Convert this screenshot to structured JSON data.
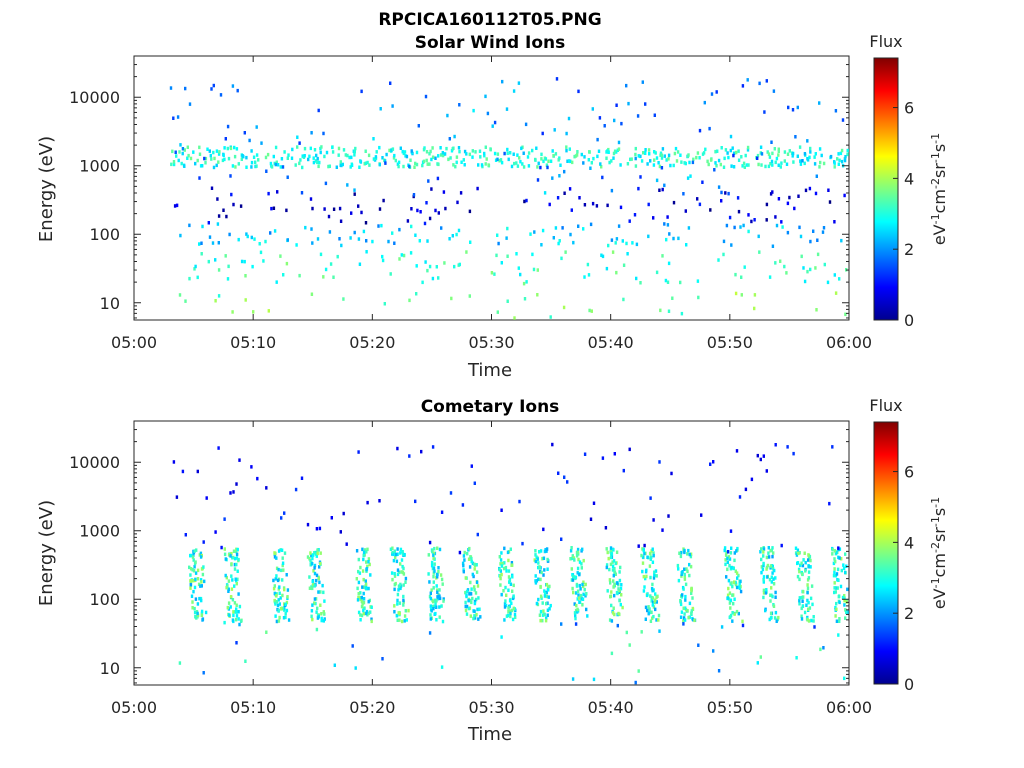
{
  "figure": {
    "title": "RPCICA160112T05.PNG"
  },
  "chart_data": [
    {
      "type": "heatmap",
      "title": "Solar Wind Ions",
      "xlabel": "Time",
      "ylabel": "Energy (eV)",
      "x_ticks": [
        "05:00",
        "05:10",
        "05:20",
        "05:30",
        "05:40",
        "05:50",
        "06:00"
      ],
      "x_range": [
        "05:00",
        "06:00"
      ],
      "y_scale": "log",
      "y_range": [
        5.6,
        40000
      ],
      "y_ticks": [
        {
          "value": 10,
          "label": "10"
        },
        {
          "value": 100,
          "label": "100"
        },
        {
          "value": 1000,
          "label": "1000"
        },
        {
          "value": 10000,
          "label": "10000"
        }
      ],
      "colorbar": {
        "title": "Flux",
        "label": "eV-1cm-2sr-1s-1",
        "range": [
          0,
          7.4
        ],
        "ticks": [
          0,
          2,
          4,
          6
        ],
        "colormap": "jet"
      },
      "data_start": "05:03",
      "bands": [
        {
          "energy_range": [
            1000,
            2000
          ],
          "flux": 3.0
        },
        {
          "energy_range": [
            150,
            500
          ],
          "flux": 0.6
        },
        {
          "energy_range": [
            70,
            150
          ],
          "flux": 2.4
        },
        {
          "energy_range": [
            20,
            60
          ],
          "flux": 3.2
        },
        {
          "energy_range": [
            6,
            15
          ],
          "flux": 3.6
        }
      ]
    },
    {
      "type": "heatmap",
      "title": "Cometary Ions",
      "xlabel": "Time",
      "ylabel": "Energy (eV)",
      "x_ticks": [
        "05:00",
        "05:10",
        "05:20",
        "05:30",
        "05:40",
        "05:50",
        "06:00"
      ],
      "x_range": [
        "05:00",
        "06:00"
      ],
      "y_scale": "log",
      "y_range": [
        5.6,
        40000
      ],
      "y_ticks": [
        {
          "value": 10,
          "label": "10"
        },
        {
          "value": 100,
          "label": "100"
        },
        {
          "value": 1000,
          "label": "1000"
        },
        {
          "value": 10000,
          "label": "10000"
        }
      ],
      "colorbar": {
        "title": "Flux",
        "label": "eV-1cm-2sr-1s-1",
        "range": [
          0,
          7.4
        ],
        "ticks": [
          0,
          2,
          4,
          6
        ],
        "colormap": "jet"
      },
      "data_start": "05:03",
      "bursts": {
        "times": [
          "05:05",
          "05:08",
          "05:12",
          "05:15",
          "05:19",
          "05:22",
          "05:25",
          "05:28",
          "05:31",
          "05:34",
          "05:37",
          "05:40",
          "05:43",
          "05:46",
          "05:50",
          "05:53",
          "05:56",
          "05:59"
        ],
        "energy_range": [
          50,
          600
        ],
        "peak_flux": 3.8
      }
    }
  ]
}
